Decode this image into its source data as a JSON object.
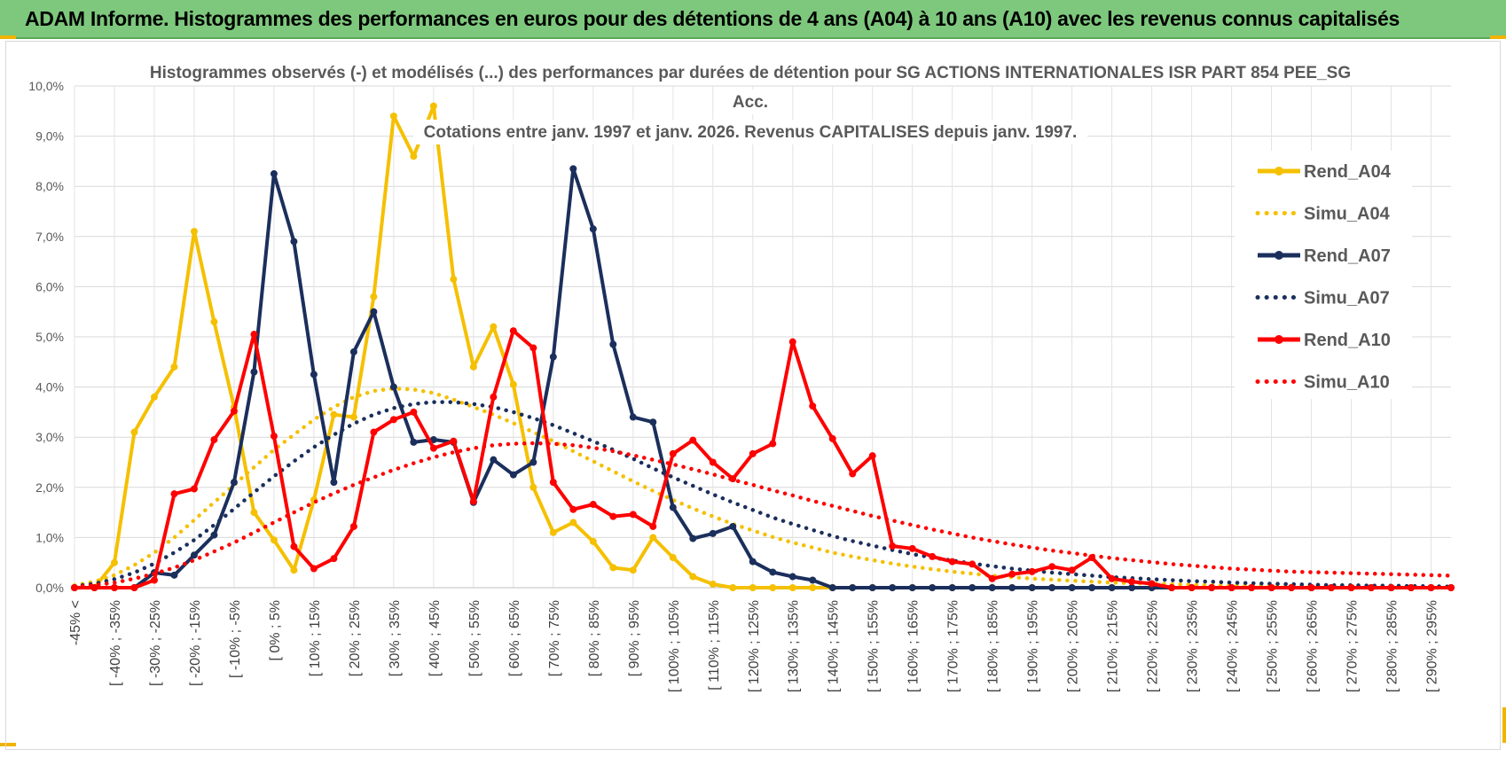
{
  "banner": {
    "title": "ADAM Informe. Histogrammes des performances en euros pour des détentions de 4 ans (A04) à 10 ans (A10) avec les revenus connus capitalisés",
    "background": "#7dc87d",
    "accent": "#f0b400"
  },
  "chart_data": {
    "type": "line",
    "title_lines": [
      "Histogrammes observés (-) et modélisés (...) des performances par durées de détention pour SG ACTIONS INTERNATIONALES  ISR PART 854 PEE_SG",
      "Acc.",
      "Cotations entre janv. 1997 et janv. 2026. Revenus CAPITALISES depuis janv. 1997."
    ],
    "ylim": [
      0,
      10
    ],
    "y_ticks": [
      0,
      1,
      2,
      3,
      4,
      5,
      6,
      7,
      8,
      9,
      10
    ],
    "y_tick_labels": [
      "0,0%",
      "1,0%",
      "2,0%",
      "3,0%",
      "4,0%",
      "5,0%",
      "6,0%",
      "7,0%",
      "8,0%",
      "9,0%",
      "10,0%"
    ],
    "x_tick_labels": [
      "-45% <",
      "[ -40% ; -35%",
      "[ -30% ; -25%",
      "[ -20% ; -15%",
      "[ -10% ; -5%",
      "[ 0% ; 5%",
      "[ 10% ; 15%",
      "[ 20% ; 25%",
      "[ 30% ; 35%",
      "[ 40% ; 45%",
      "[ 50% ; 55%",
      "[ 60% ; 65%",
      "[ 70% ; 75%",
      "[ 80% ; 85%",
      "[ 90% ; 95%",
      "[ 100% ; 105%",
      "[ 110% ; 115%",
      "[ 120% ; 125%",
      "[ 130% ; 135%",
      "[ 140% ; 145%",
      "[ 150% ; 155%",
      "[ 160% ; 165%",
      "[ 170% ; 175%",
      "[ 180% ; 185%",
      "[ 190% ; 195%",
      "[ 200% ; 205%",
      "[ 210% ; 215%",
      "[ 220% ; 225%",
      "[ 230% ; 235%",
      "[ 240% ; 245%",
      "[ 250% ; 255%",
      "[ 260% ; 265%",
      "[ 270% ; 275%",
      "[ 280% ; 285%",
      "[ 290% ; 295%"
    ],
    "n_bins": 70,
    "legend_position": "right",
    "series": [
      {
        "name": "Rend_A04",
        "style": "solid",
        "color": "#f5c000",
        "values": [
          0,
          0,
          0.5,
          3.1,
          3.8,
          4.4,
          7.1,
          5.3,
          3.6,
          1.5,
          0.95,
          0.35,
          1.75,
          3.45,
          3.4,
          5.8,
          9.4,
          8.6,
          9.6,
          6.15,
          4.4,
          5.2,
          4.05,
          2.0,
          1.1,
          1.3,
          0.92,
          0.4,
          0.35,
          1.0,
          0.6,
          0.22,
          0.07,
          0,
          0,
          0,
          0,
          0,
          0,
          0,
          0,
          0,
          0,
          0,
          0,
          0,
          0,
          0,
          0,
          0,
          0,
          0,
          0,
          0,
          0,
          0,
          0,
          0,
          0,
          0,
          0,
          0,
          0,
          0,
          0,
          0,
          0,
          0,
          0,
          0
        ]
      },
      {
        "name": "Simu_A04",
        "style": "dotted",
        "color": "#f5c000",
        "values": [
          0.05,
          0.12,
          0.25,
          0.45,
          0.7,
          1.0,
          1.35,
          1.7,
          2.05,
          2.4,
          2.75,
          3.05,
          3.35,
          3.6,
          3.8,
          3.92,
          3.97,
          3.95,
          3.88,
          3.75,
          3.6,
          3.45,
          3.28,
          3.1,
          2.92,
          2.72,
          2.52,
          2.32,
          2.12,
          1.93,
          1.75,
          1.58,
          1.42,
          1.27,
          1.14,
          1.01,
          0.9,
          0.8,
          0.7,
          0.62,
          0.55,
          0.48,
          0.42,
          0.37,
          0.32,
          0.28,
          0.24,
          0.21,
          0.18,
          0.16,
          0.14,
          0.12,
          0.1,
          0.09,
          0.08,
          0.07,
          0.06,
          0.05,
          0.04,
          0.04,
          0.03,
          0.03,
          0.02,
          0.02,
          0.02,
          0.01,
          0.01,
          0.01,
          0.01,
          0.01
        ]
      },
      {
        "name": "Rend_A07",
        "style": "solid",
        "color": "#1b2f5c",
        "values": [
          0,
          0,
          0,
          0,
          0.3,
          0.25,
          0.65,
          1.05,
          2.1,
          4.3,
          8.25,
          6.9,
          4.25,
          2.1,
          4.7,
          5.5,
          4.0,
          2.9,
          2.95,
          2.9,
          1.7,
          2.55,
          2.25,
          2.5,
          4.6,
          8.35,
          7.15,
          4.85,
          3.4,
          3.3,
          1.6,
          0.98,
          1.08,
          1.22,
          0.52,
          0.31,
          0.22,
          0.15,
          0,
          0,
          0,
          0,
          0,
          0,
          0,
          0,
          0,
          0,
          0,
          0,
          0,
          0,
          0,
          0,
          0,
          0,
          0,
          0,
          0,
          0,
          0,
          0,
          0,
          0,
          0,
          0,
          0,
          0,
          0,
          0
        ]
      },
      {
        "name": "Simu_A07",
        "style": "dotted",
        "color": "#1b2f5c",
        "values": [
          0.03,
          0.08,
          0.17,
          0.3,
          0.48,
          0.7,
          0.95,
          1.25,
          1.57,
          1.9,
          2.22,
          2.52,
          2.8,
          3.05,
          3.27,
          3.45,
          3.58,
          3.66,
          3.7,
          3.7,
          3.66,
          3.6,
          3.5,
          3.38,
          3.24,
          3.08,
          2.92,
          2.75,
          2.57,
          2.38,
          2.2,
          2.03,
          1.86,
          1.7,
          1.55,
          1.4,
          1.27,
          1.15,
          1.03,
          0.93,
          0.84,
          0.75,
          0.67,
          0.6,
          0.54,
          0.48,
          0.43,
          0.38,
          0.34,
          0.3,
          0.27,
          0.24,
          0.21,
          0.19,
          0.17,
          0.15,
          0.13,
          0.12,
          0.1,
          0.09,
          0.08,
          0.07,
          0.06,
          0.05,
          0.05,
          0.04,
          0.04,
          0.03,
          0.03,
          0.02
        ]
      },
      {
        "name": "Rend_A10",
        "style": "solid",
        "color": "#ff0000",
        "values": [
          0,
          0,
          0,
          0,
          0.15,
          1.87,
          1.97,
          2.95,
          3.52,
          5.05,
          3.02,
          0.82,
          0.38,
          0.58,
          1.22,
          3.1,
          3.35,
          3.5,
          2.78,
          2.92,
          1.72,
          3.8,
          5.12,
          4.78,
          2.1,
          1.56,
          1.66,
          1.42,
          1.46,
          1.22,
          2.67,
          2.94,
          2.5,
          2.17,
          2.67,
          2.87,
          4.9,
          3.62,
          2.97,
          2.27,
          2.63,
          0.83,
          0.78,
          0.62,
          0.52,
          0.47,
          0.18,
          0.27,
          0.32,
          0.42,
          0.35,
          0.6,
          0.18,
          0.12,
          0.08,
          0,
          0,
          0,
          0,
          0,
          0,
          0,
          0,
          0,
          0,
          0,
          0,
          0,
          0,
          0
        ]
      },
      {
        "name": "Simu_A10",
        "style": "dotted",
        "color": "#ff0000",
        "values": [
          0.02,
          0.05,
          0.1,
          0.18,
          0.28,
          0.4,
          0.55,
          0.72,
          0.9,
          1.1,
          1.3,
          1.5,
          1.7,
          1.88,
          2.05,
          2.2,
          2.35,
          2.48,
          2.6,
          2.7,
          2.78,
          2.84,
          2.87,
          2.88,
          2.87,
          2.84,
          2.79,
          2.72,
          2.64,
          2.55,
          2.46,
          2.36,
          2.26,
          2.15,
          2.05,
          1.94,
          1.84,
          1.73,
          1.63,
          1.53,
          1.43,
          1.34,
          1.25,
          1.16,
          1.08,
          1.0,
          0.93,
          0.86,
          0.8,
          0.74,
          0.69,
          0.64,
          0.59,
          0.55,
          0.51,
          0.47,
          0.44,
          0.41,
          0.38,
          0.36,
          0.34,
          0.32,
          0.31,
          0.3,
          0.29,
          0.28,
          0.27,
          0.26,
          0.25,
          0.24
        ]
      }
    ]
  }
}
